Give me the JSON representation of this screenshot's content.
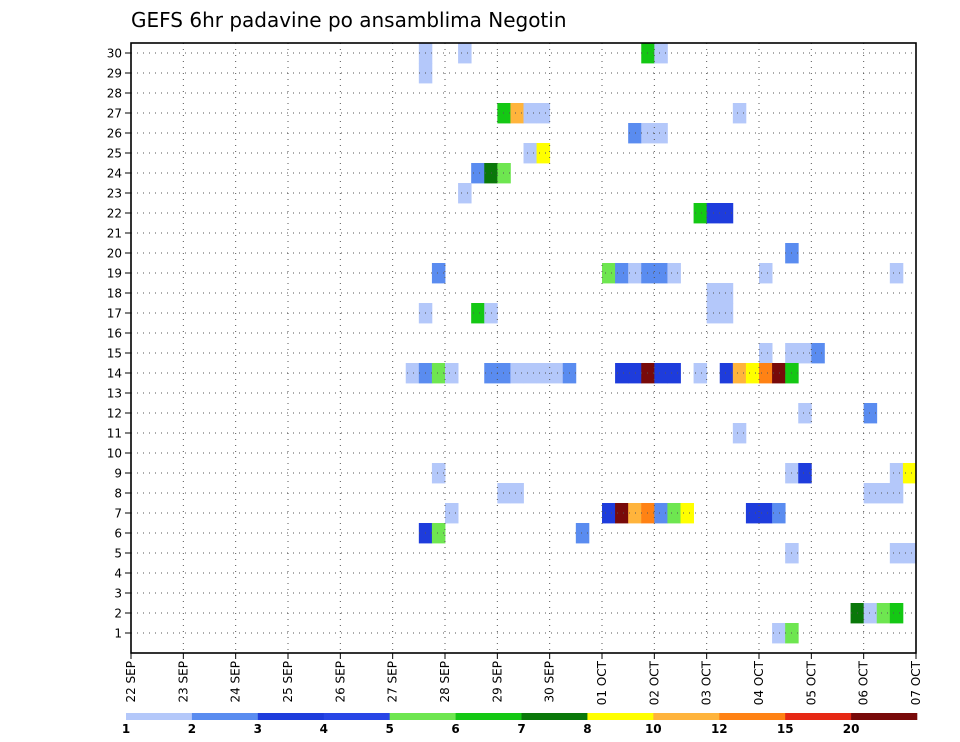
{
  "chart_data": {
    "type": "heatmap",
    "title": "GEFS 6hr padavine po ansamblima Negotin",
    "xlabel": "",
    "ylabel": "",
    "grid": true,
    "y_ticks": [
      "1",
      "2",
      "3",
      "4",
      "5",
      "6",
      "7",
      "8",
      "9",
      "10",
      "11",
      "12",
      "13",
      "14",
      "15",
      "16",
      "17",
      "18",
      "19",
      "20",
      "21",
      "22",
      "23",
      "24",
      "25",
      "26",
      "27",
      "28",
      "29",
      "30"
    ],
    "x_ticks": [
      "22 SEP",
      "23 SEP",
      "24 SEP",
      "25 SEP",
      "26 SEP",
      "27 SEP",
      "28 SEP",
      "29 SEP",
      "30 SEP",
      "01 OCT",
      "02 OCT",
      "03 OCT",
      "04 OCT",
      "05 OCT",
      "06 OCT",
      "07 OCT"
    ],
    "x_step_label": "6 h steps, 4 per day",
    "legend": {
      "levels": [
        "1",
        "2",
        "3",
        "4",
        "5",
        "6",
        "7",
        "8",
        "10",
        "12",
        "15",
        "20"
      ],
      "colors": [
        "#b4c8fa",
        "#5a8cf0",
        "#1e3cdc",
        "#2846e6",
        "#6ee650",
        "#14c814",
        "#0a780a",
        "#ffff00",
        "#ffb43c",
        "#ff8214",
        "#e62814",
        "#780a0a"
      ]
    },
    "cells": [
      {
        "m": 30,
        "t": 23,
        "c": 0
      },
      {
        "m": 30,
        "t": 26,
        "c": 0
      },
      {
        "m": 30,
        "t": 40,
        "c": 5
      },
      {
        "m": 30,
        "t": 41,
        "c": 0
      },
      {
        "m": 29,
        "t": 23,
        "c": 0
      },
      {
        "m": 27,
        "t": 29,
        "c": 5
      },
      {
        "m": 27,
        "t": 30,
        "c": 8
      },
      {
        "m": 27,
        "t": 31,
        "c": 0
      },
      {
        "m": 27,
        "t": 32,
        "c": 0
      },
      {
        "m": 27,
        "t": 47,
        "c": 0
      },
      {
        "m": 26,
        "t": 39,
        "c": 1
      },
      {
        "m": 26,
        "t": 40,
        "c": 0
      },
      {
        "m": 26,
        "t": 41,
        "c": 0
      },
      {
        "m": 25,
        "t": 31,
        "c": 0
      },
      {
        "m": 25,
        "t": 32,
        "c": 7
      },
      {
        "m": 24,
        "t": 27,
        "c": 1
      },
      {
        "m": 24,
        "t": 28,
        "c": 6
      },
      {
        "m": 24,
        "t": 29,
        "c": 4
      },
      {
        "m": 23,
        "t": 26,
        "c": 0
      },
      {
        "m": 22,
        "t": 44,
        "c": 5
      },
      {
        "m": 22,
        "t": 45,
        "c": 2
      },
      {
        "m": 22,
        "t": 46,
        "c": 2
      },
      {
        "m": 20,
        "t": 51,
        "c": 1
      },
      {
        "m": 19,
        "t": 24,
        "c": 1
      },
      {
        "m": 19,
        "t": 37,
        "c": 4
      },
      {
        "m": 19,
        "t": 38,
        "c": 1
      },
      {
        "m": 19,
        "t": 39,
        "c": 0
      },
      {
        "m": 19,
        "t": 40,
        "c": 1
      },
      {
        "m": 19,
        "t": 41,
        "c": 1
      },
      {
        "m": 19,
        "t": 42,
        "c": 0
      },
      {
        "m": 19,
        "t": 49,
        "c": 0
      },
      {
        "m": 19,
        "t": 59,
        "c": 0
      },
      {
        "m": 18,
        "t": 45,
        "c": 0
      },
      {
        "m": 18,
        "t": 46,
        "c": 0
      },
      {
        "m": 17,
        "t": 23,
        "c": 0
      },
      {
        "m": 17,
        "t": 27,
        "c": 5
      },
      {
        "m": 17,
        "t": 28,
        "c": 0
      },
      {
        "m": 17,
        "t": 45,
        "c": 0
      },
      {
        "m": 17,
        "t": 46,
        "c": 0
      },
      {
        "m": 15,
        "t": 49,
        "c": 0
      },
      {
        "m": 15,
        "t": 51,
        "c": 0
      },
      {
        "m": 15,
        "t": 52,
        "c": 0
      },
      {
        "m": 15,
        "t": 53,
        "c": 1
      },
      {
        "m": 14,
        "t": 22,
        "c": 0
      },
      {
        "m": 14,
        "t": 23,
        "c": 1
      },
      {
        "m": 14,
        "t": 24,
        "c": 4
      },
      {
        "m": 14,
        "t": 25,
        "c": 0
      },
      {
        "m": 14,
        "t": 28,
        "c": 1
      },
      {
        "m": 14,
        "t": 29,
        "c": 1
      },
      {
        "m": 14,
        "t": 30,
        "c": 0
      },
      {
        "m": 14,
        "t": 31,
        "c": 0
      },
      {
        "m": 14,
        "t": 32,
        "c": 0
      },
      {
        "m": 14,
        "t": 33,
        "c": 0
      },
      {
        "m": 14,
        "t": 34,
        "c": 1
      },
      {
        "m": 14,
        "t": 38,
        "c": 2
      },
      {
        "m": 14,
        "t": 39,
        "c": 2
      },
      {
        "m": 14,
        "t": 40,
        "c": 11
      },
      {
        "m": 14,
        "t": 41,
        "c": 2
      },
      {
        "m": 14,
        "t": 42,
        "c": 2
      },
      {
        "m": 14,
        "t": 44,
        "c": 0
      },
      {
        "m": 14,
        "t": 46,
        "c": 2
      },
      {
        "m": 14,
        "t": 47,
        "c": 8
      },
      {
        "m": 14,
        "t": 48,
        "c": 7
      },
      {
        "m": 14,
        "t": 49,
        "c": 9
      },
      {
        "m": 14,
        "t": 50,
        "c": 11
      },
      {
        "m": 14,
        "t": 51,
        "c": 5
      },
      {
        "m": 12,
        "t": 52,
        "c": 0
      },
      {
        "m": 12,
        "t": 57,
        "c": 1
      },
      {
        "m": 11,
        "t": 47,
        "c": 0
      },
      {
        "m": 9,
        "t": 24,
        "c": 0
      },
      {
        "m": 9,
        "t": 51,
        "c": 0
      },
      {
        "m": 9,
        "t": 52,
        "c": 2
      },
      {
        "m": 9,
        "t": 59,
        "c": 0
      },
      {
        "m": 9,
        "t": 60,
        "c": 7
      },
      {
        "m": 8,
        "t": 29,
        "c": 0
      },
      {
        "m": 8,
        "t": 30,
        "c": 0
      },
      {
        "m": 8,
        "t": 57,
        "c": 0
      },
      {
        "m": 8,
        "t": 58,
        "c": 0
      },
      {
        "m": 8,
        "t": 59,
        "c": 0
      },
      {
        "m": 7,
        "t": 25,
        "c": 0
      },
      {
        "m": 7,
        "t": 37,
        "c": 2
      },
      {
        "m": 7,
        "t": 38,
        "c": 11
      },
      {
        "m": 7,
        "t": 39,
        "c": 8
      },
      {
        "m": 7,
        "t": 40,
        "c": 9
      },
      {
        "m": 7,
        "t": 41,
        "c": 1
      },
      {
        "m": 7,
        "t": 42,
        "c": 4
      },
      {
        "m": 7,
        "t": 43,
        "c": 7
      },
      {
        "m": 7,
        "t": 48,
        "c": 2
      },
      {
        "m": 7,
        "t": 49,
        "c": 2
      },
      {
        "m": 7,
        "t": 50,
        "c": 1
      },
      {
        "m": 6,
        "t": 23,
        "c": 2
      },
      {
        "m": 6,
        "t": 24,
        "c": 4
      },
      {
        "m": 6,
        "t": 35,
        "c": 1
      },
      {
        "m": 5,
        "t": 51,
        "c": 0
      },
      {
        "m": 5,
        "t": 59,
        "c": 0
      },
      {
        "m": 5,
        "t": 60,
        "c": 0
      },
      {
        "m": 2,
        "t": 56,
        "c": 6
      },
      {
        "m": 2,
        "t": 57,
        "c": 0
      },
      {
        "m": 2,
        "t": 58,
        "c": 4
      },
      {
        "m": 2,
        "t": 59,
        "c": 5
      },
      {
        "m": 1,
        "t": 50,
        "c": 0
      },
      {
        "m": 1,
        "t": 51,
        "c": 4
      }
    ]
  }
}
